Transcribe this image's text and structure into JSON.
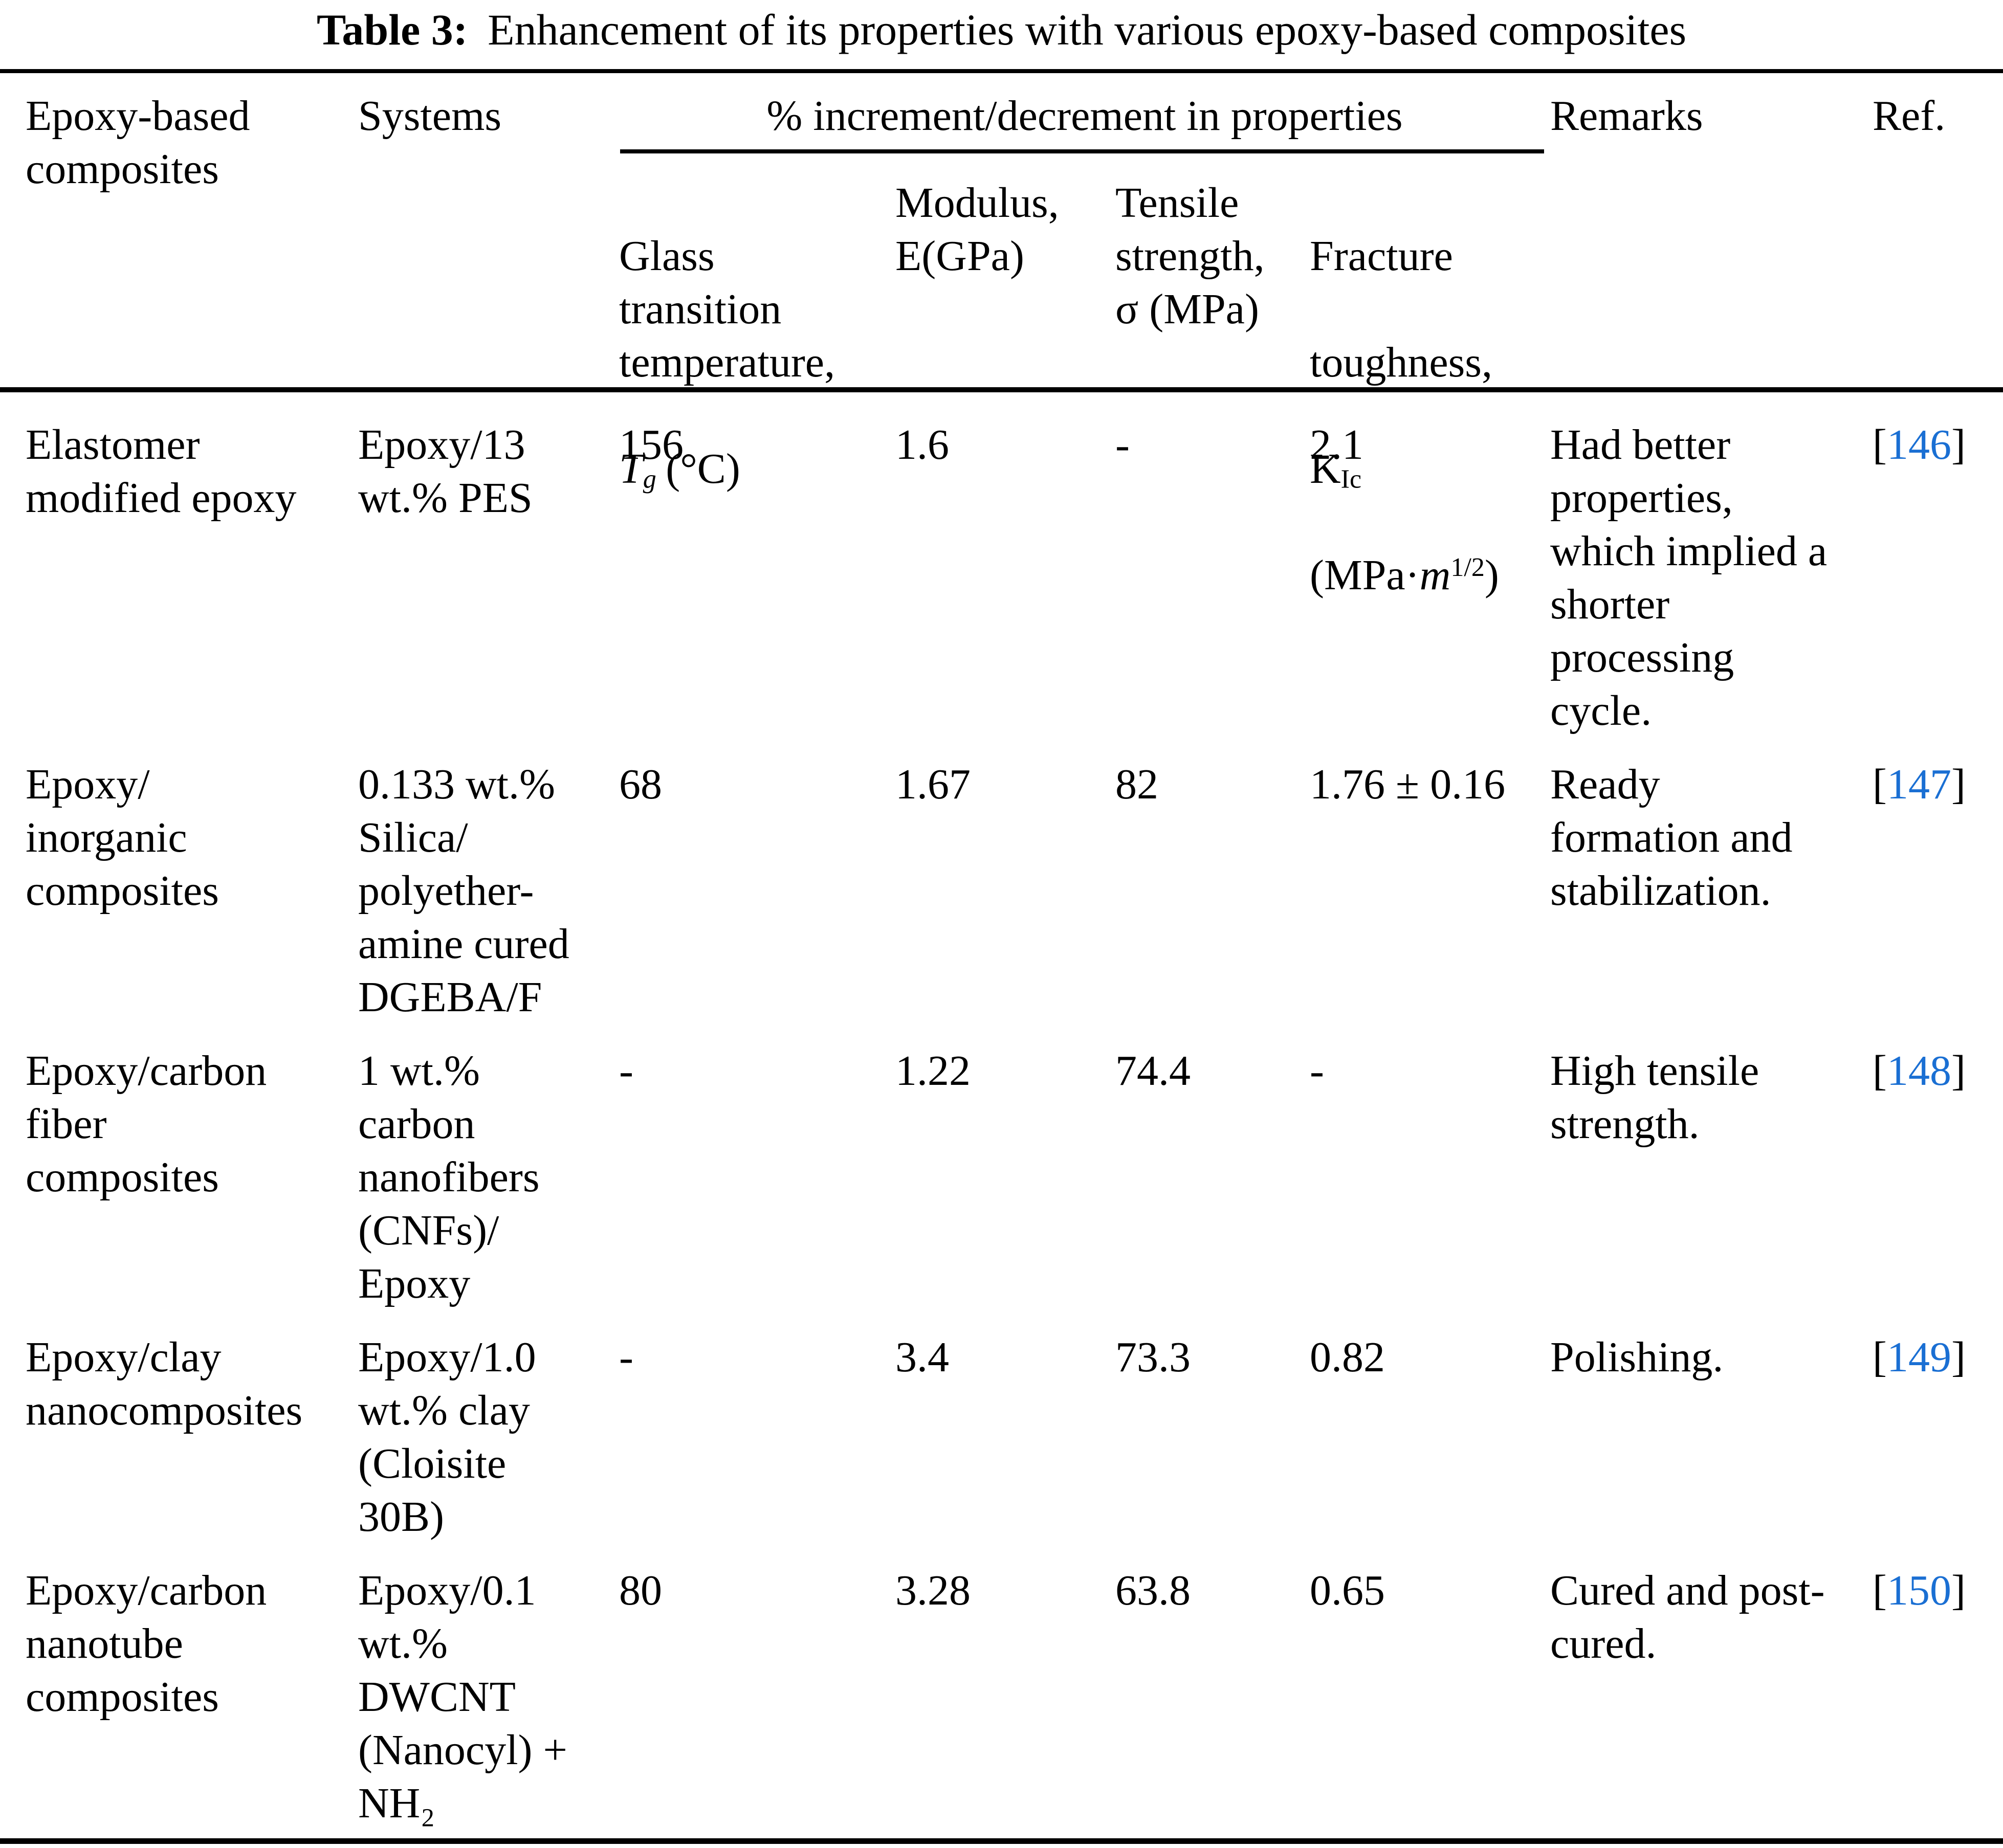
{
  "title": {
    "label": "Table 3:",
    "text": "Enhancement of its properties with various epoxy-based composites"
  },
  "colors": {
    "ref_blue": "#1a6fd3"
  },
  "header": {
    "col_composites": "Epoxy-based\ncomposites",
    "col_systems": "Systems",
    "span_properties": "% increment/decrement in properties",
    "col_remarks": "Remarks",
    "col_ref": "Ref.",
    "sub": {
      "glass": {
        "lines": "Glass\ntransition\ntemperature,",
        "symbol": "T",
        "symbol_sub": "g",
        "unit": "(°C)"
      },
      "modulus": "Modulus,\nE(GPa)",
      "tensile": "Tensile\nstrength,\nσ (MPa)",
      "fracture": {
        "line1": "Fracture",
        "line2": "toughness,",
        "k": "K",
        "k_sub": "Ic",
        "unit_open": "(MPa·",
        "m": "m",
        "exp": "1/2",
        "unit_close": ")"
      }
    }
  },
  "refs": {
    "open": "[",
    "close": "]"
  },
  "rows": [
    {
      "composite": "Elastomer\nmodified epoxy",
      "system": "Epoxy/13\nwt.% PES",
      "tg": "156",
      "modulus": "1.6",
      "tensile": "-",
      "fracture": "2.1",
      "remarks": "Had better\nproperties,\nwhich implied a\nshorter\nprocessing\ncycle.",
      "ref": "146"
    },
    {
      "composite": "Epoxy/\ninorganic\ncomposites",
      "system": "0.133 wt.%\nSilica/\npolyether-\namine cured\nDGEBA/F",
      "tg": "68",
      "modulus": "1.67",
      "tensile": "82",
      "fracture": "1.76 ± 0.16",
      "remarks": "Ready\nformation and\nstabilization.",
      "ref": "147"
    },
    {
      "composite": "Epoxy/carbon\nfiber\ncomposites",
      "system": "1 wt.%\ncarbon\nnanofibers\n(CNFs)/\nEpoxy",
      "tg": "-",
      "modulus": "1.22",
      "tensile": "74.4",
      "fracture": "-",
      "remarks": "High tensile\nstrength.",
      "ref": "148"
    },
    {
      "composite": "Epoxy/clay\nnanocomposites",
      "system": "Epoxy/1.0\nwt.% clay\n(Cloisite\n30B)",
      "tg": "-",
      "modulus": "3.4",
      "tensile": "73.3",
      "fracture": "0.82",
      "remarks": "Polishing.",
      "ref": "149"
    },
    {
      "composite": "Epoxy/carbon\nnanotube\ncomposites",
      "system": "Epoxy/0.1\nwt.%\nDWCNT\n(Nanocyl) +\nNH₂",
      "tg": "80",
      "modulus": "3.28",
      "tensile": "63.8",
      "fracture": "0.65",
      "remarks": "Cured and post-\ncured.",
      "ref": "150"
    }
  ]
}
